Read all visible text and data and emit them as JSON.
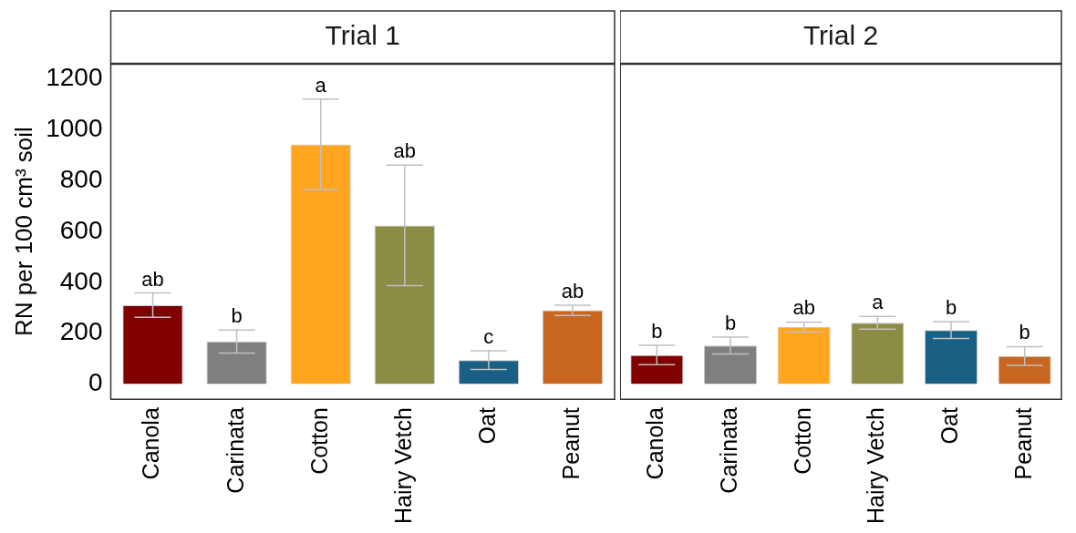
{
  "chart_data": [
    {
      "type": "bar",
      "title": "Trial 1",
      "ylabel": "RN per 100 cm³ soil",
      "categories": [
        "Canola",
        "Carinata",
        "Cotton",
        "Hairy Vetch",
        "Oat",
        "Peanut"
      ],
      "values": [
        310,
        167,
        943,
        624,
        94,
        290
      ],
      "errors": [
        48,
        45,
        178,
        237,
        37,
        20
      ],
      "colors": [
        "#800000",
        "#7f7f7f",
        "#ffa51f",
        "#8b8c46",
        "#1a6085",
        "#c8661f"
      ],
      "ylim": [
        -60,
        1260
      ],
      "yticks": [
        0,
        200,
        400,
        600,
        800,
        1000,
        1200
      ],
      "grid": false,
      "annotations": [
        {
          "text": "ab",
          "x": "Canola",
          "y": 358
        },
        {
          "text": "b",
          "x": "Carinata",
          "y": 212
        },
        {
          "text": "a",
          "x": "Cotton",
          "y": 1121
        },
        {
          "text": "ab",
          "x": "Hairy Vetch",
          "y": 861
        },
        {
          "text": "c",
          "x": "Oat",
          "y": 131
        },
        {
          "text": "ab",
          "x": "Peanut",
          "y": 310
        }
      ]
    },
    {
      "type": "bar",
      "title": "Trial 2",
      "categories": [
        "Canola",
        "Carinata",
        "Cotton",
        "Hairy Vetch",
        "Oat",
        "Peanut"
      ],
      "values": [
        114,
        151,
        224,
        241,
        212,
        110
      ],
      "errors": [
        38,
        33,
        20,
        25,
        33,
        37
      ],
      "colors": [
        "#800000",
        "#7f7f7f",
        "#ffa51f",
        "#8b8c46",
        "#1a6085",
        "#c8661f"
      ],
      "ylim": [
        -60,
        1260
      ],
      "yticks": [
        0,
        200,
        400,
        600,
        800,
        1000,
        1200
      ],
      "tick_labels": "x",
      "grid": false,
      "annotations": [
        {
          "text": "b",
          "x": "Canola",
          "y": 152
        },
        {
          "text": "b",
          "x": "Carinata",
          "y": 184
        },
        {
          "text": "ab",
          "x": "Cotton",
          "y": 244
        },
        {
          "text": "a",
          "x": "Hairy Vetch",
          "y": 266
        },
        {
          "text": "b",
          "x": "Oat",
          "y": 245
        },
        {
          "text": "b",
          "x": "Peanut",
          "y": 147
        }
      ]
    }
  ]
}
